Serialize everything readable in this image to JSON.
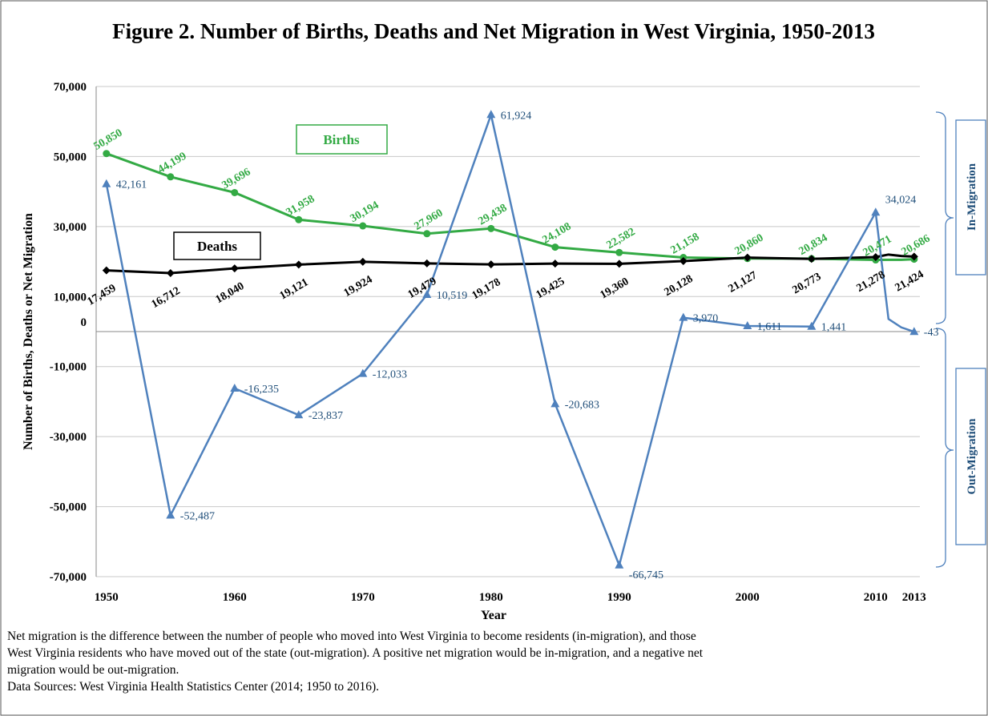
{
  "chart_data": {
    "type": "line",
    "title": "Figure 2. Number of Births, Deaths and Net Migration in West Virginia, 1950-2013",
    "x_label": "Year",
    "y_label": "Number of Births, Deaths or Net Migration",
    "x": [
      1950,
      1955,
      1960,
      1965,
      1970,
      1975,
      1980,
      1985,
      1990,
      1995,
      2000,
      2005,
      2010,
      2011,
      2012,
      2013
    ],
    "xlim": [
      1949.2,
      2013.45
    ],
    "xticks": [
      1950,
      1960,
      1970,
      1980,
      1990,
      2000,
      2010,
      2013
    ],
    "ylim": [
      -70000,
      70000
    ],
    "yticks": [
      {
        "value": 70000,
        "label": "70,000"
      },
      {
        "value": 50000,
        "label": "50,000"
      },
      {
        "value": 30000,
        "label": "30,000"
      },
      {
        "value": 10000,
        "label": "10,000"
      },
      0,
      {
        "value": -10000,
        "label": "-10,000"
      },
      {
        "value": -30000,
        "label": "-30,000"
      },
      {
        "value": -50000,
        "label": "-50,000"
      },
      {
        "value": -70000,
        "label": "-70,000"
      }
    ],
    "grid": true,
    "series": [
      {
        "name": "Births",
        "color": "#33aa44",
        "marker": "circle",
        "values": [
          50850,
          44199,
          39696,
          31958,
          30194,
          27960,
          29438,
          24108,
          22582,
          21158,
          20860,
          20834,
          20471,
          20500,
          20500,
          20686
        ],
        "value_labels": [
          "50,850",
          "44,199",
          "39,696",
          "31,958",
          "30,194",
          "27,960",
          "29,438",
          "24,108",
          "22,582",
          "21,158",
          "20,860",
          "20,834",
          "20,471",
          null,
          null,
          "20,686"
        ]
      },
      {
        "name": "Deaths",
        "color": "#000000",
        "marker": "diamond",
        "values": [
          17459,
          16712,
          18040,
          19121,
          19924,
          19479,
          19178,
          19425,
          19360,
          20128,
          21127,
          20773,
          21278,
          22000,
          21600,
          21424
        ],
        "value_labels": [
          "17,459",
          "16,712",
          "18,040",
          "19,121",
          "19,924",
          "19,479",
          "19,178",
          "19,425",
          "19,360",
          "20,128",
          "21,127",
          "20,773",
          "21,278",
          null,
          null,
          "21,424"
        ]
      },
      {
        "color": "#4f81bd",
        "label_color": "#1f4e79",
        "marker": "triangle",
        "values": [
          42161,
          -52487,
          -16235,
          -23837,
          -12033,
          10519,
          61924,
          -20683,
          -66745,
          3970,
          1611,
          1441,
          34024,
          3600,
          1200,
          -43
        ],
        "value_labels": [
          "42,161",
          "-52,487",
          "-16,235",
          "-23,837",
          "-12,033",
          "10,519",
          "61,924",
          "-20,683",
          "-66,745",
          "3,970",
          "1,611",
          "1,441",
          "34,024",
          null,
          null,
          "-43"
        ]
      }
    ],
    "annotations": [
      "In-Migration",
      "Out-Migration"
    ],
    "notes": [
      "Net migration is the difference between the number of people who moved into West Virginia  to become residents (in-migration), and those",
      "West Virginia  residents who have moved out of the state (out-migration). A positive net migration would be in-migration, and a negative net",
      "migration would be out-migration.",
      "Data Sources: West Virginia  Health Statistics Center (2014; 1950 to 2016)."
    ]
  }
}
